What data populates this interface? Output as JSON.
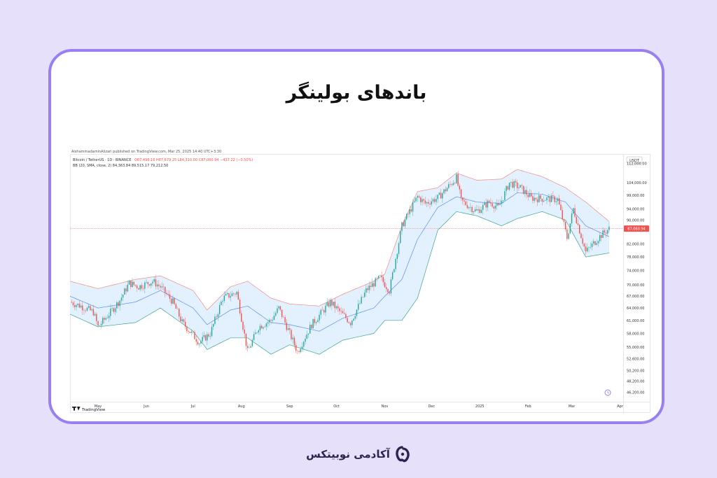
{
  "card": {
    "title": "باندهای بولینگر"
  },
  "footer": {
    "brand_name": "آکادمی نوبیتکس"
  },
  "colors": {
    "background": "#e7e0fb",
    "card_border": "#9a7ff0",
    "up_candle": "#26a69a",
    "down_candle": "#ef5350",
    "upper_band": "#f28b82",
    "lower_band": "#3aa58f",
    "basis": "#5b8def",
    "band_fill": "#e3f0fd",
    "price_line": "#ef5350",
    "brand": "#2b2550"
  },
  "chart_data": {
    "type": "candlestick",
    "published_by": "AlshammadaminAlizari published on TradingView.com, Mar 25, 2025 14:40 UTC+3:30",
    "symbol_line": "Bitcoin / TetherUS · 1D · BINANCE",
    "ohlc_text": "O87,498.16  H87,679.25  L84,310.00  C87,060.94  −437.22 (−0.50%)",
    "indicator_line": "BB (20, SMA, close, 2)  84,363.84  89,515.17  79,212.50",
    "currency": "USDT",
    "current_price": "87,060.94",
    "watermark": "TradingView",
    "y_scale": "log",
    "ylim": [
      45000,
      115000
    ],
    "y_ticks": [
      "112,000.00",
      "104,000.00",
      "99,000.00",
      "94,000.00",
      "90,000.00",
      "86,000.00",
      "82,000.00",
      "78,000.00",
      "74,000.00",
      "70,000.00",
      "67,000.00",
      "64,000.00",
      "61,000.00",
      "58,000.00",
      "55,000.00",
      "52,600.00",
      "50,200.00",
      "48,200.00",
      "46,200.00"
    ],
    "x_labels": [
      "May",
      "Jun",
      "Jul",
      "Aug",
      "Sep",
      "Oct",
      "Nov",
      "Dec",
      "2025",
      "Feb",
      "Mar",
      "Apr"
    ],
    "x_range": [
      "2024-04-13",
      "2025-04-03"
    ],
    "grid": false,
    "price_path": [
      [
        "2024-04-13",
        65500
      ],
      [
        "2024-04-20",
        64500
      ],
      [
        "2024-04-28",
        63000
      ],
      [
        "2024-05-01",
        59500
      ],
      [
        "2024-05-08",
        62500
      ],
      [
        "2024-05-15",
        66000
      ],
      [
        "2024-05-21",
        70500
      ],
      [
        "2024-05-27",
        69500
      ],
      [
        "2024-06-05",
        71000
      ],
      [
        "2024-06-10",
        69500
      ],
      [
        "2024-06-18",
        65500
      ],
      [
        "2024-06-24",
        60500
      ],
      [
        "2024-07-05",
        56000
      ],
      [
        "2024-07-12",
        58000
      ],
      [
        "2024-07-20",
        66500
      ],
      [
        "2024-07-29",
        68000
      ],
      [
        "2024-08-05",
        54000
      ],
      [
        "2024-08-12",
        59500
      ],
      [
        "2024-08-20",
        61000
      ],
      [
        "2024-08-25",
        64000
      ],
      [
        "2024-09-01",
        58000
      ],
      [
        "2024-09-06",
        54000
      ],
      [
        "2024-09-15",
        60000
      ],
      [
        "2024-09-27",
        65500
      ],
      [
        "2024-10-10",
        60500
      ],
      [
        "2024-10-20",
        68500
      ],
      [
        "2024-10-29",
        72000
      ],
      [
        "2024-11-04",
        68500
      ],
      [
        "2024-11-12",
        88000
      ],
      [
        "2024-11-22",
        98500
      ],
      [
        "2024-11-27",
        96000
      ],
      [
        "2024-12-05",
        98000
      ],
      [
        "2024-12-17",
        106000
      ],
      [
        "2024-12-20",
        97000
      ],
      [
        "2024-12-30",
        93000
      ],
      [
        "2025-01-07",
        96500
      ],
      [
        "2025-01-13",
        94500
      ],
      [
        "2025-01-20",
        104000
      ],
      [
        "2025-01-27",
        102000
      ],
      [
        "2025-02-03",
        98000
      ],
      [
        "2025-02-20",
        97500
      ],
      [
        "2025-02-26",
        84000
      ],
      [
        "2025-03-02",
        94000
      ],
      [
        "2025-03-10",
        79500
      ],
      [
        "2025-03-19",
        84500
      ],
      [
        "2025-03-25",
        87060.94
      ]
    ],
    "bb_upper": [
      [
        "2024-04-13",
        71000
      ],
      [
        "2024-05-01",
        69000
      ],
      [
        "2024-05-25",
        71500
      ],
      [
        "2024-06-10",
        72500
      ],
      [
        "2024-07-01",
        68500
      ],
      [
        "2024-07-10",
        63500
      ],
      [
        "2024-07-25",
        69500
      ],
      [
        "2024-08-05",
        71000
      ],
      [
        "2024-08-20",
        66500
      ],
      [
        "2024-09-01",
        65000
      ],
      [
        "2024-09-20",
        64500
      ],
      [
        "2024-10-05",
        67500
      ],
      [
        "2024-10-25",
        71000
      ],
      [
        "2024-11-01",
        73000
      ],
      [
        "2024-11-12",
        88000
      ],
      [
        "2024-11-22",
        100500
      ],
      [
        "2024-12-05",
        102000
      ],
      [
        "2024-12-17",
        108000
      ],
      [
        "2024-12-30",
        105000
      ],
      [
        "2025-01-15",
        105500
      ],
      [
        "2025-01-25",
        109500
      ],
      [
        "2025-02-10",
        106500
      ],
      [
        "2025-02-25",
        102000
      ],
      [
        "2025-03-10",
        96500
      ],
      [
        "2025-03-25",
        89500
      ]
    ],
    "bb_basis": [
      [
        "2024-04-13",
        67000
      ],
      [
        "2024-05-01",
        64000
      ],
      [
        "2024-05-25",
        65500
      ],
      [
        "2024-06-10",
        68500
      ],
      [
        "2024-07-01",
        64000
      ],
      [
        "2024-07-10",
        60000
      ],
      [
        "2024-07-25",
        63500
      ],
      [
        "2024-08-05",
        64500
      ],
      [
        "2024-08-20",
        60500
      ],
      [
        "2024-09-01",
        60000
      ],
      [
        "2024-09-20",
        58500
      ],
      [
        "2024-10-05",
        61500
      ],
      [
        "2024-10-25",
        64000
      ],
      [
        "2024-11-01",
        67000
      ],
      [
        "2024-11-12",
        71500
      ],
      [
        "2024-11-22",
        83500
      ],
      [
        "2024-12-05",
        94500
      ],
      [
        "2024-12-17",
        98500
      ],
      [
        "2024-12-30",
        96500
      ],
      [
        "2025-01-15",
        96000
      ],
      [
        "2025-01-25",
        100000
      ],
      [
        "2025-02-10",
        99500
      ],
      [
        "2025-02-25",
        96500
      ],
      [
        "2025-03-10",
        88000
      ],
      [
        "2025-03-25",
        84363.84
      ]
    ],
    "bb_lower": [
      [
        "2024-04-13",
        62500
      ],
      [
        "2024-05-01",
        59500
      ],
      [
        "2024-05-25",
        60500
      ],
      [
        "2024-06-10",
        64000
      ],
      [
        "2024-07-01",
        58500
      ],
      [
        "2024-07-10",
        54500
      ],
      [
        "2024-07-25",
        57000
      ],
      [
        "2024-08-05",
        57000
      ],
      [
        "2024-08-20",
        53500
      ],
      [
        "2024-09-01",
        55500
      ],
      [
        "2024-09-20",
        53500
      ],
      [
        "2024-10-05",
        56500
      ],
      [
        "2024-10-25",
        58000
      ],
      [
        "2024-11-01",
        61000
      ],
      [
        "2024-11-12",
        61000
      ],
      [
        "2024-11-22",
        66500
      ],
      [
        "2024-12-05",
        86500
      ],
      [
        "2024-12-17",
        93000
      ],
      [
        "2024-12-30",
        91500
      ],
      [
        "2025-01-15",
        88000
      ],
      [
        "2025-01-25",
        90500
      ],
      [
        "2025-02-10",
        93000
      ],
      [
        "2025-02-25",
        90000
      ],
      [
        "2025-03-10",
        78000
      ],
      [
        "2025-03-25",
        79212.5
      ]
    ]
  }
}
